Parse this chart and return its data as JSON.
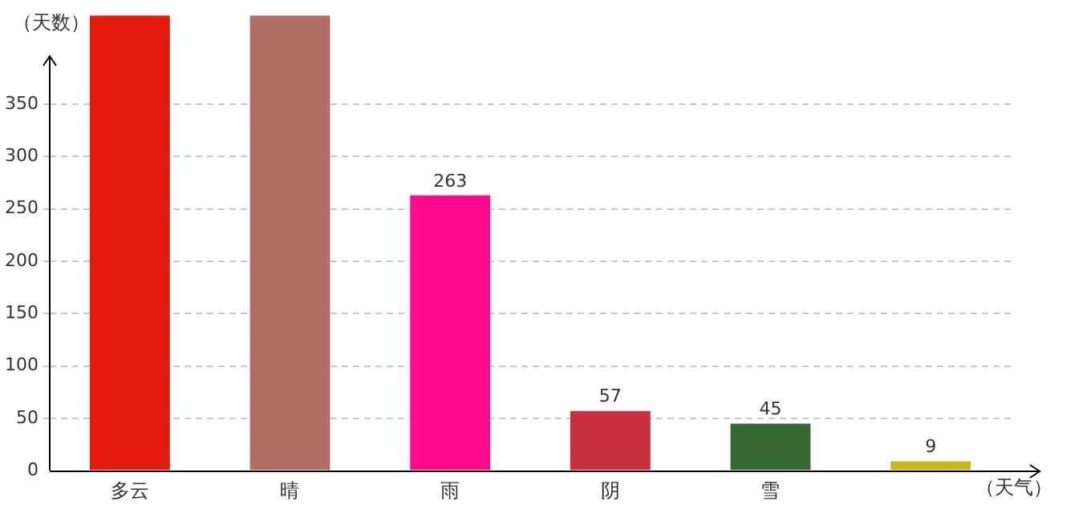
{
  "chart_data": {
    "type": "bar",
    "xlabel": "（天气）",
    "ylabel": "（天数）",
    "categories": [
      "多云",
      "晴",
      "雨",
      "阴",
      "雪",
      null
    ],
    "values": [
      435,
      435,
      263,
      57,
      45,
      9
    ],
    "colors": [
      "#e31a0c",
      "#b06e64",
      "#ff0a8c",
      "#c9303f",
      "#356a32",
      "#c9b31b"
    ],
    "value_labels": [
      null,
      null,
      "263",
      "57",
      "45",
      "9"
    ],
    "ylim": [
      0,
      435
    ],
    "yticks": [
      0,
      50,
      100,
      150,
      200,
      250,
      300,
      350
    ],
    "grid": "y",
    "legend": false
  }
}
